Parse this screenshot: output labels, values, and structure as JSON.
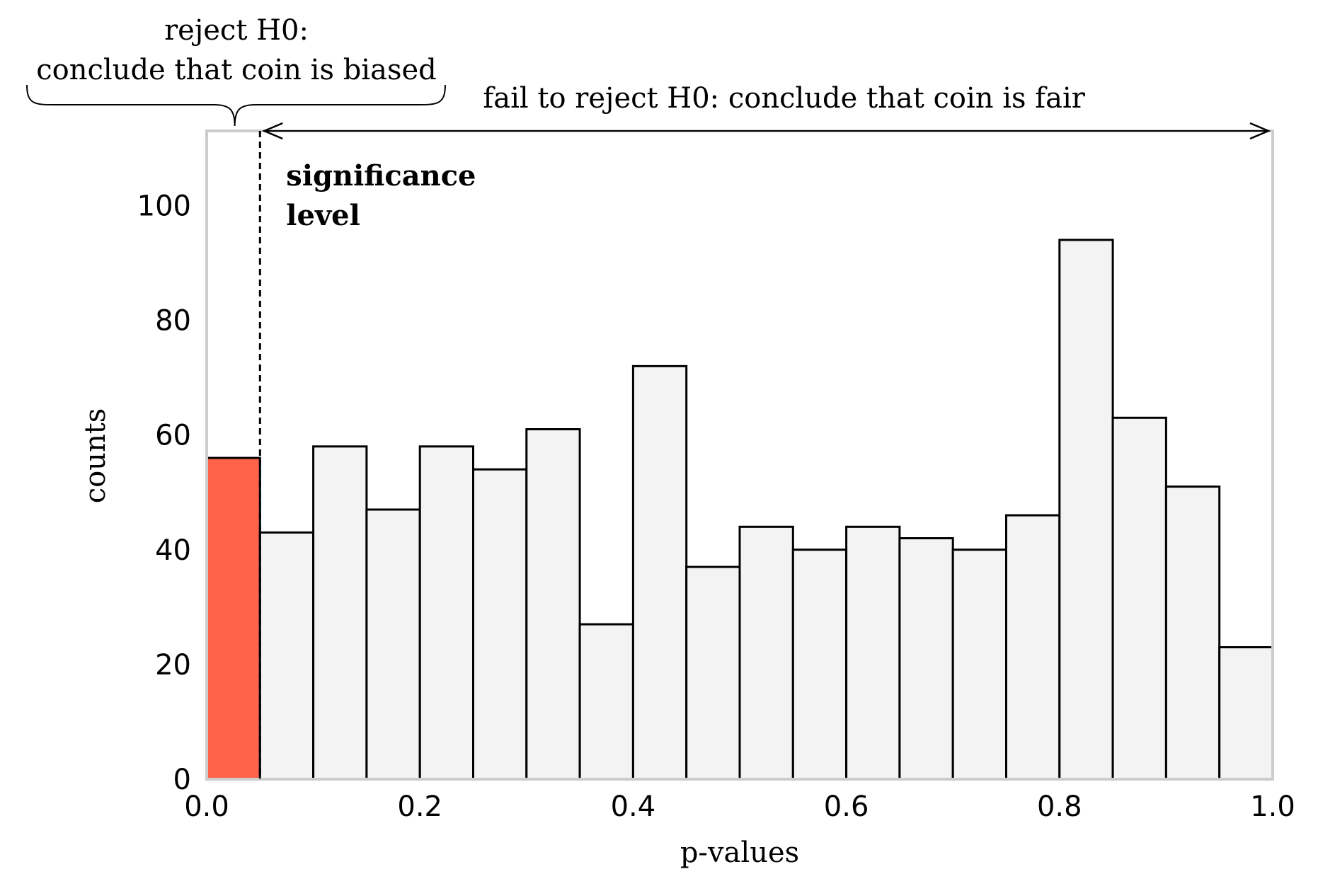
{
  "chart_data": {
    "type": "bar",
    "title": "",
    "xlabel": "p-values",
    "ylabel": "counts",
    "xlim": [
      0.0,
      1.0
    ],
    "ylim": [
      0,
      113
    ],
    "xticks": [
      "0.0",
      "0.2",
      "0.4",
      "0.6",
      "0.8",
      "1.0"
    ],
    "yticks": [
      "0",
      "20",
      "40",
      "60",
      "80",
      "100"
    ],
    "bin_edges": [
      0.0,
      0.05,
      0.1,
      0.15,
      0.2,
      0.25,
      0.3,
      0.35,
      0.4,
      0.45,
      0.5,
      0.55,
      0.6,
      0.65,
      0.7,
      0.75,
      0.8,
      0.85,
      0.9,
      0.95,
      1.0
    ],
    "values": [
      56,
      43,
      58,
      47,
      58,
      54,
      61,
      27,
      72,
      37,
      44,
      40,
      44,
      42,
      40,
      46,
      94,
      63,
      51,
      23
    ],
    "highlight_color": "#ff634a",
    "bar_color": "#f3f3f3",
    "frame_color": "#cccccc",
    "grid": false,
    "significance_level": 0.05,
    "annotations": {
      "reject_line1": "reject H0:",
      "reject_line2": "conclude that coin is biased",
      "fail_text": "fail to reject H0: conclude that coin is fair",
      "sig_line1": "significance",
      "sig_line2": "level"
    }
  }
}
